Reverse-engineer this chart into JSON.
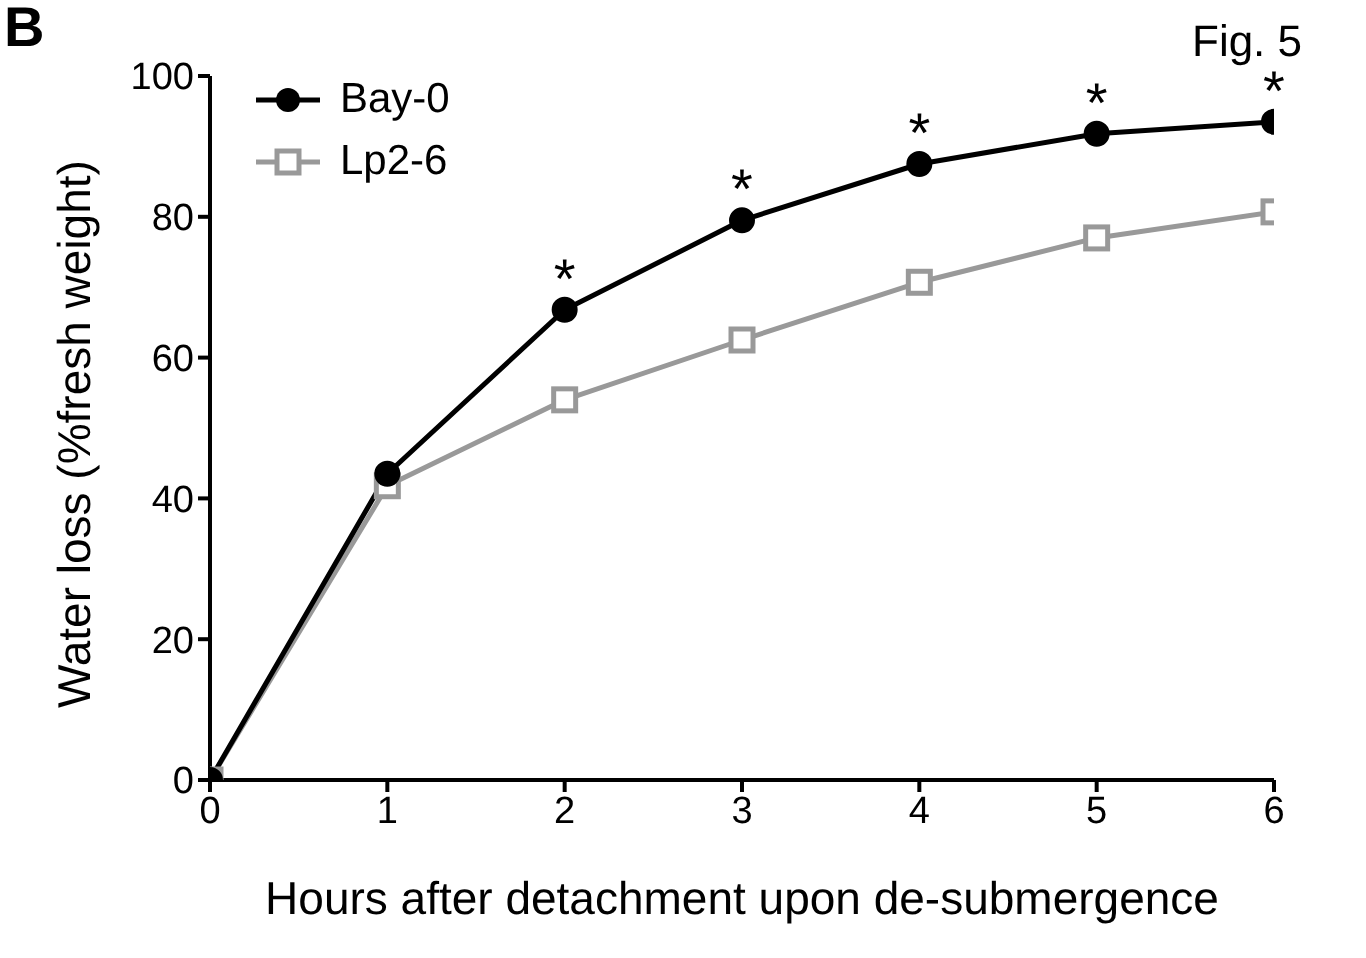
{
  "chart_data": {
    "type": "line",
    "xlabel": "Hours after detachment upon de-submergence",
    "ylabel": "Water loss (%fresh weight)",
    "x": [
      0,
      1,
      2,
      3,
      4,
      5,
      6
    ],
    "series": [
      {
        "name": "Bay-0",
        "color": "#000000",
        "marker": "circle",
        "values": [
          0,
          43.5,
          66.8,
          79.5,
          87.5,
          91.8,
          93.5
        ]
      },
      {
        "name": "Lp2-6",
        "color": "#999999",
        "marker": "square",
        "values": [
          0,
          41.8,
          54,
          62.5,
          70.7,
          77,
          80.7
        ]
      }
    ],
    "xlim": [
      0,
      6
    ],
    "xticks": [
      0,
      1,
      2,
      3,
      4,
      5,
      6
    ],
    "ylim": [
      0,
      100
    ],
    "yticks": [
      0,
      20,
      40,
      60,
      80,
      100
    ],
    "grid": false,
    "legend": "top left",
    "line_style": "solid",
    "annotations": [
      "B",
      "Fig. 5",
      {
        "text": "*",
        "x": 2,
        "y": 66.8
      },
      {
        "text": "*",
        "x": 3,
        "y": 79.5
      },
      {
        "text": "*",
        "x": 4,
        "y": 87.5
      },
      {
        "text": "*",
        "x": 5,
        "y": 91.8
      },
      {
        "text": "*",
        "x": 6,
        "y": 93.5
      }
    ]
  }
}
